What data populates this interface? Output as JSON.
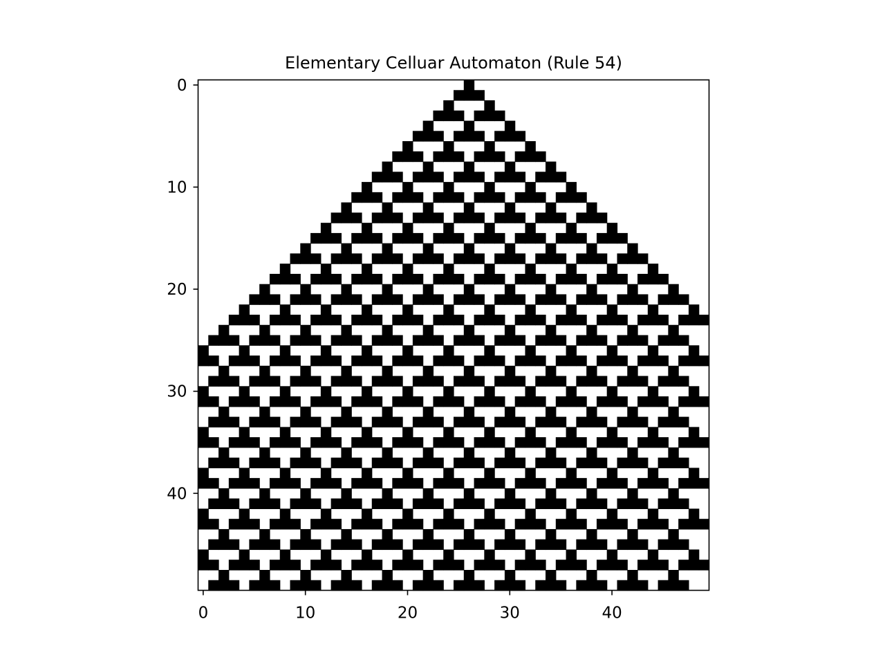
{
  "chart_data": {
    "type": "heatmap",
    "title": "Elementary Celluar Automaton  (Rule 54)",
    "rule": 54,
    "width": 50,
    "generations": 50,
    "initial_live_cell": 26,
    "boundary": "fixed-zero",
    "colormap": [
      "#ffffff",
      "#000000"
    ],
    "x_ticks": [
      0,
      10,
      20,
      30,
      40
    ],
    "y_ticks": [
      0,
      10,
      20,
      30,
      40
    ],
    "xlim": [
      -0.5,
      49.5
    ],
    "ylim": [
      49.5,
      -0.5
    ],
    "grid": false,
    "legend": "none"
  }
}
